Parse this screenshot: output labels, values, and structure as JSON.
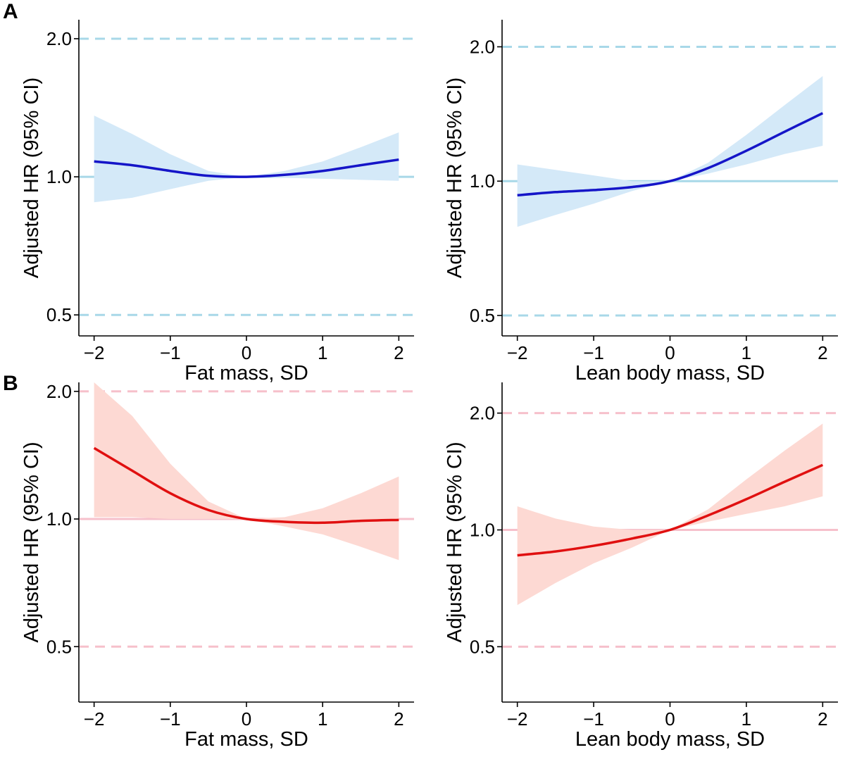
{
  "figure": {
    "panel_labels": [
      "A",
      "B"
    ]
  },
  "chart_data": [
    {
      "type": "line",
      "panel": "A",
      "xlabel": "Fat mass, SD",
      "ylabel": "Adjusted HR (95% CI)",
      "xlim": [
        -2.2,
        2.2
      ],
      "ylim": [
        0.45,
        2.2
      ],
      "y_scale": "log",
      "xticks": [
        -2,
        -1,
        0,
        1,
        2
      ],
      "xtick_labels": [
        "−2",
        "−1",
        "0",
        "1",
        "2"
      ],
      "yticks": [
        0.5,
        1.0,
        2.0
      ],
      "ytick_labels": [
        "0.5",
        "1.0",
        "2.0"
      ],
      "reference_lines": [
        {
          "y": 2.0,
          "style": "dashed"
        },
        {
          "y": 1.0,
          "style": "solid"
        },
        {
          "y": 0.5,
          "style": "dashed"
        }
      ],
      "colors": {
        "line": "#1515c8",
        "band": "#d4e9f8",
        "reference": "#a8d8e8"
      },
      "grid": false,
      "series": [
        {
          "x": [
            -2,
            -1.5,
            -1,
            -0.5,
            0,
            0.5,
            1,
            1.5,
            2
          ],
          "y": [
            1.08,
            1.06,
            1.03,
            1.005,
            1.0,
            1.01,
            1.03,
            1.06,
            1.09
          ],
          "ci_lower": [
            0.88,
            0.9,
            0.94,
            0.98,
            1.0,
            0.995,
            0.99,
            0.985,
            0.98
          ],
          "ci_upper": [
            1.36,
            1.24,
            1.12,
            1.03,
            1.0,
            1.03,
            1.08,
            1.16,
            1.25
          ]
        }
      ]
    },
    {
      "type": "line",
      "panel": "A",
      "xlabel": "Lean body mass, SD",
      "ylabel": "Adjusted HR (95% CI)",
      "xlim": [
        -2.2,
        2.2
      ],
      "ylim": [
        0.45,
        2.3
      ],
      "y_scale": "log",
      "xticks": [
        -2,
        -1,
        0,
        1,
        2
      ],
      "xtick_labels": [
        "−2",
        "−1",
        "0",
        "1",
        "2"
      ],
      "yticks": [
        0.5,
        1.0,
        2.0
      ],
      "ytick_labels": [
        "0.5",
        "1.0",
        "2.0"
      ],
      "reference_lines": [
        {
          "y": 2.0,
          "style": "dashed"
        },
        {
          "y": 1.0,
          "style": "solid"
        },
        {
          "y": 0.5,
          "style": "dashed"
        }
      ],
      "colors": {
        "line": "#1515c8",
        "band": "#d4e9f8",
        "reference": "#a8d8e8"
      },
      "grid": false,
      "series": [
        {
          "x": [
            -2,
            -1.5,
            -1,
            -0.5,
            0,
            0.5,
            1,
            1.5,
            2
          ],
          "y": [
            0.93,
            0.945,
            0.955,
            0.97,
            1.0,
            1.07,
            1.17,
            1.29,
            1.42
          ],
          "ci_lower": [
            0.79,
            0.84,
            0.89,
            0.95,
            1.0,
            1.04,
            1.09,
            1.15,
            1.2
          ],
          "ci_upper": [
            1.09,
            1.06,
            1.03,
            1.0,
            1.0,
            1.1,
            1.27,
            1.48,
            1.72
          ]
        }
      ]
    },
    {
      "type": "line",
      "panel": "B",
      "xlabel": "Fat mass, SD",
      "ylabel": "Adjusted HR (95% CI)",
      "xlim": [
        -2.2,
        2.2
      ],
      "ylim": [
        0.37,
        2.1
      ],
      "y_scale": "log",
      "xticks": [
        -2,
        -1,
        0,
        1,
        2
      ],
      "xtick_labels": [
        "−2",
        "−1",
        "0",
        "1",
        "2"
      ],
      "yticks": [
        0.5,
        1.0,
        2.0
      ],
      "ytick_labels": [
        "0.5",
        "1.0",
        "2.0"
      ],
      "reference_lines": [
        {
          "y": 2.0,
          "style": "dashed"
        },
        {
          "y": 1.0,
          "style": "solid"
        },
        {
          "y": 0.5,
          "style": "dashed"
        }
      ],
      "colors": {
        "line": "#e01010",
        "band": "#fdd9d3",
        "reference": "#f6c0cb"
      },
      "grid": false,
      "series": [
        {
          "x": [
            -2,
            -1.5,
            -1,
            -0.5,
            0,
            0.5,
            1,
            1.5,
            2
          ],
          "y": [
            1.47,
            1.3,
            1.15,
            1.05,
            1.0,
            0.985,
            0.98,
            0.99,
            0.995
          ],
          "ci_lower": [
            1.01,
            1.01,
            1.0,
            1.0,
            1.0,
            0.96,
            0.92,
            0.86,
            0.8
          ],
          "ci_upper": [
            2.1,
            1.75,
            1.35,
            1.1,
            1.0,
            1.01,
            1.06,
            1.15,
            1.26
          ]
        }
      ]
    },
    {
      "type": "line",
      "panel": "B",
      "xlabel": "Lean body mass, SD",
      "ylabel": "Adjusted HR (95% CI)",
      "xlim": [
        -2.2,
        2.2
      ],
      "ylim": [
        0.36,
        2.4
      ],
      "y_scale": "log",
      "xticks": [
        -2,
        -1,
        0,
        1,
        2
      ],
      "xtick_labels": [
        "−2",
        "−1",
        "0",
        "1",
        "2"
      ],
      "yticks": [
        0.5,
        1.0,
        2.0
      ],
      "ytick_labels": [
        "0.5",
        "1.0",
        "2.0"
      ],
      "reference_lines": [
        {
          "y": 2.0,
          "style": "dashed"
        },
        {
          "y": 1.0,
          "style": "solid"
        },
        {
          "y": 0.5,
          "style": "dashed"
        }
      ],
      "colors": {
        "line": "#e01010",
        "band": "#fdd9d3",
        "reference": "#f6c0cb"
      },
      "grid": false,
      "series": [
        {
          "x": [
            -2,
            -1.5,
            -1,
            -0.5,
            0,
            0.5,
            1,
            1.5,
            2
          ],
          "y": [
            0.86,
            0.88,
            0.91,
            0.95,
            1.0,
            1.09,
            1.2,
            1.33,
            1.47
          ],
          "ci_lower": [
            0.64,
            0.73,
            0.82,
            0.9,
            1.0,
            1.05,
            1.1,
            1.15,
            1.22
          ],
          "ci_upper": [
            1.15,
            1.07,
            1.02,
            1.0,
            1.0,
            1.13,
            1.35,
            1.6,
            1.88
          ]
        }
      ]
    }
  ]
}
